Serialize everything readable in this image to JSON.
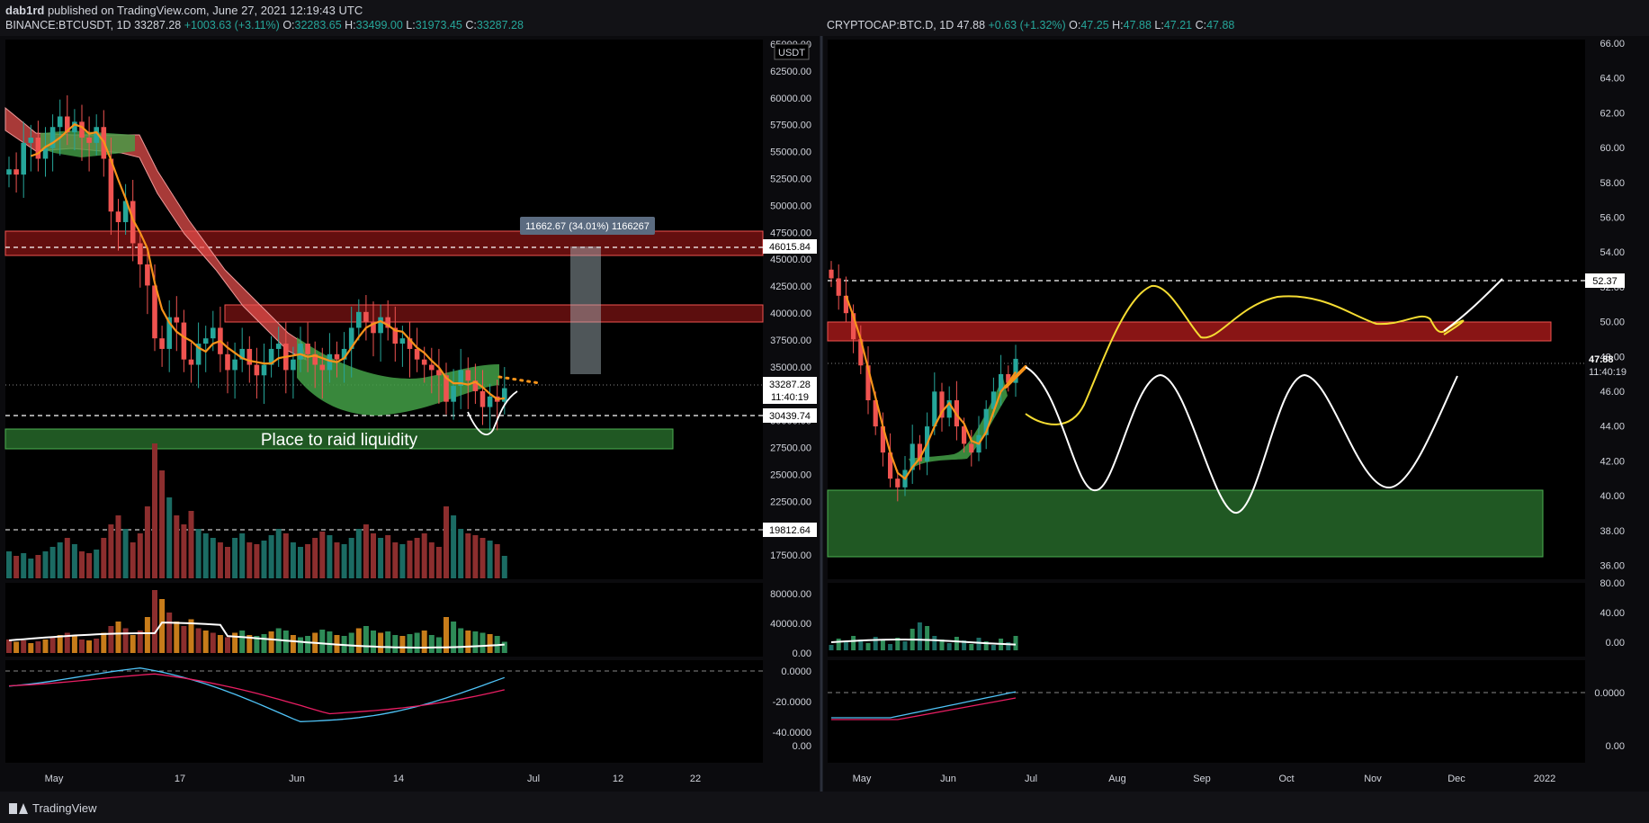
{
  "header": {
    "author": "dab1rd",
    "published_text": " published on TradingView.com, June 27, 2021 12:19:43 UTC"
  },
  "footer": {
    "brand": "TradingView"
  },
  "colors": {
    "up": "#26a69a",
    "down": "#ef5350",
    "orange": "#f7931a",
    "red_band": "#b71c1c",
    "green_band": "#2e7d32",
    "yellow": "#f5dc32",
    "white": "#ffffff"
  },
  "left_chart": {
    "symbol": "BINANCE:BTCUSDT, 1D",
    "last": "33287.28",
    "change": "+1003.63 (+3.11%)",
    "ohlc": {
      "o_label": "O:",
      "o": "32283.65",
      "h_label": "H:",
      "h": "33499.00",
      "l_label": "L:",
      "l": "31973.45",
      "c_label": "C:",
      "c": "33287.28"
    },
    "currency": "USDT",
    "price_ticks": [
      "65000.00",
      "62500.00",
      "60000.00",
      "57500.00",
      "55000.00",
      "52500.00",
      "50000.00",
      "47500.00",
      "45000.00",
      "42500.00",
      "40000.00",
      "37500.00",
      "35000.00",
      "32500.00",
      "30000.00",
      "27500.00",
      "25000.00",
      "22500.00",
      "20000.00",
      "17500.00"
    ],
    "price_flags": {
      "level_top": "46015.84",
      "current": "33287.28",
      "countdown": "11:40:19",
      "level_low": "30439.74",
      "level_vol": "19812.64"
    },
    "measure_label": "11662.67 (34.01%) 1166267",
    "annotation": "Place to raid liquidity",
    "volume_ticks": [
      "80000.00",
      "40000.00",
      "0.00"
    ],
    "osc_ticks": [
      "0.0000",
      "-20.0000",
      "-40.0000",
      "0.00"
    ],
    "time_ticks": [
      "May",
      "17",
      "Jun",
      "14",
      "Jul",
      "12",
      "22"
    ]
  },
  "right_chart": {
    "symbol": "CRYPTOCAP:BTC.D, 1D",
    "last": "47.88",
    "change": "+0.63 (+1.32%)",
    "ohlc": {
      "o_label": "O:",
      "o": "47.25",
      "h_label": "H:",
      "h": "47.88",
      "l_label": "L:",
      "l": "47.21",
      "c_label": "C:",
      "c": "47.88"
    },
    "price_ticks": [
      "66.00",
      "64.00",
      "62.00",
      "60.00",
      "58.00",
      "56.00",
      "54.00",
      "52.00",
      "50.00",
      "48.00",
      "46.00",
      "44.00",
      "42.00",
      "40.00",
      "38.00",
      "36.00"
    ],
    "price_flags": {
      "level_top": "52.37",
      "current": "47.88",
      "countdown": "11:40:19"
    },
    "volume_ticks": [
      "80.00",
      "40.00",
      "0.00"
    ],
    "osc_ticks": [
      "0.0000",
      "0.00"
    ],
    "time_ticks": [
      "May",
      "Jun",
      "Jul",
      "Aug",
      "Sep",
      "Oct",
      "Nov",
      "Dec",
      "2022"
    ]
  },
  "chart_data": [
    {
      "type": "candlestick",
      "series_name": "BINANCE:BTCUSDT",
      "ylim": [
        15000,
        66000
      ],
      "closes": [
        54000,
        53500,
        56500,
        57000,
        55000,
        56000,
        58000,
        59000,
        57500,
        58500,
        57000,
        56500,
        58000,
        55000,
        50000,
        49000,
        51000,
        47000,
        45000,
        43000,
        38000,
        37000,
        40000,
        39500,
        36000,
        35500,
        37500,
        38000,
        39000,
        36500,
        35000,
        36000,
        37000,
        35500,
        34500,
        35500,
        37000,
        37500,
        35000,
        36000,
        37500,
        36500,
        35500,
        35000,
        36500,
        36000,
        37000,
        39000,
        40500,
        39500,
        38500,
        40000,
        39000,
        37500,
        38000,
        37000,
        36000,
        35500,
        35000,
        34500,
        32000,
        33500,
        35000,
        34000,
        33000,
        31500,
        32500,
        32000,
        33287
      ],
      "levels": [
        46015.84,
        30439.74,
        19812.64
      ],
      "zones": [
        {
          "label": "",
          "from": 45000,
          "to": 47500,
          "color": "red"
        },
        {
          "label": "",
          "from": 39000,
          "to": 40500,
          "color": "red"
        },
        {
          "label": "Place to raid liquidity",
          "from": 28000,
          "to": 29800,
          "color": "green"
        }
      ]
    },
    {
      "type": "line",
      "series_name": "CRYPTOCAP:BTC.D",
      "ylim": [
        36,
        66
      ],
      "closes": [
        52.5,
        51.5,
        50.5,
        49,
        47.5,
        45.5,
        44,
        42.5,
        41,
        40.5,
        41.5,
        43,
        42,
        44,
        46,
        44.5,
        45.5,
        44,
        43,
        42.5,
        43.5,
        45,
        46,
        47,
        46.5,
        47.88
      ],
      "levels": [
        52.37
      ],
      "zones": [
        {
          "label": "",
          "from": 49,
          "to": 50,
          "color": "red"
        },
        {
          "label": "",
          "from": 36.5,
          "to": 40.4,
          "color": "green"
        }
      ]
    }
  ]
}
